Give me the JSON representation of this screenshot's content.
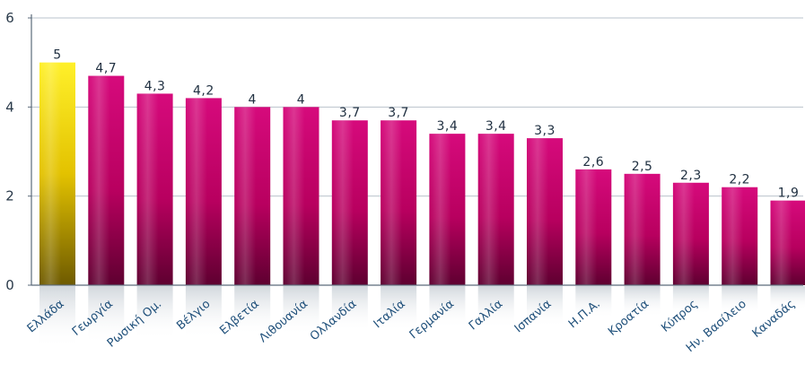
{
  "chart_data": {
    "type": "bar",
    "categories": [
      "Ελλάδα",
      "Γεωργία",
      "Ρωσική Ομ.",
      "Βέλγιο",
      "Ελβετία",
      "Λιθουανία",
      "Ολλανδία",
      "Ιταλία",
      "Γερμανία",
      "Γαλλία",
      "Ισπανία",
      "Η.Π.Α.",
      "Κροατία",
      "Κύπρος",
      "Ην. Βασίλειο",
      "Καναδάς"
    ],
    "values": [
      5,
      4.7,
      4.3,
      4.2,
      4,
      4,
      3.7,
      3.7,
      3.4,
      3.4,
      3.3,
      2.6,
      2.5,
      2.3,
      2.2,
      1.9
    ],
    "value_labels": [
      "5",
      "4,7",
      "4,3",
      "4,2",
      "4",
      "4",
      "3,7",
      "3,7",
      "3,4",
      "3,4",
      "3,3",
      "2,6",
      "2,5",
      "2,3",
      "2,2",
      "1,9"
    ],
    "y_ticks": [
      "0",
      "2",
      "4",
      "6"
    ],
    "ylim": [
      0,
      6
    ],
    "title": "",
    "xlabel": "",
    "ylabel": "",
    "grid": true,
    "highlight_index": 0,
    "colors": {
      "highlight": "#e8c400",
      "bar": "#c6006e",
      "grid": "#b9c3cc",
      "axis": "#5a6a7a"
    }
  }
}
